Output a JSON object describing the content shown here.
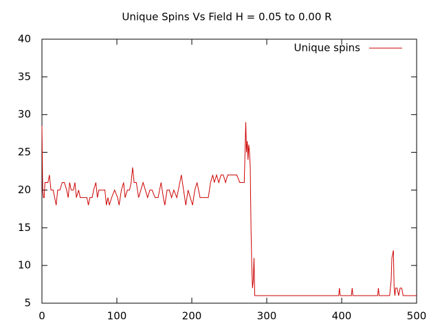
{
  "chart_data": {
    "type": "line",
    "title": "Unique Spins Vs Field H = 0.05 to 0.00 R",
    "x": [
      0,
      1,
      2,
      3,
      4,
      8,
      10,
      12,
      15,
      17,
      19,
      21,
      24,
      27,
      30,
      33,
      35,
      37,
      39,
      42,
      44,
      46,
      49,
      51,
      56,
      60,
      62,
      64,
      67,
      69,
      72,
      74,
      76,
      80,
      84,
      86,
      88,
      90,
      93,
      97,
      101,
      103,
      106,
      109,
      111,
      114,
      117,
      119,
      121,
      123,
      126,
      129,
      132,
      135,
      138,
      141,
      144,
      147,
      151,
      155,
      159,
      162,
      164,
      167,
      170,
      173,
      176,
      180,
      184,
      186,
      189,
      192,
      195,
      198,
      201,
      204,
      207,
      211,
      214,
      217,
      222,
      225,
      228,
      230,
      233,
      236,
      239,
      242,
      245,
      248,
      252,
      256,
      260,
      264,
      268,
      270,
      272,
      273,
      274,
      275,
      276,
      277,
      278,
      279,
      280,
      281,
      282,
      283,
      284,
      286,
      300,
      396,
      397,
      398,
      413,
      414,
      415,
      448,
      449,
      450,
      464,
      466,
      467,
      468,
      469,
      470,
      471,
      472,
      474,
      476,
      478,
      480,
      482,
      500
    ],
    "series": [
      {
        "name": "Unique spins",
        "color": "#cc0000",
        "values": [
          28.5,
          20,
          19,
          19,
          21,
          21,
          22,
          20,
          20,
          19,
          18,
          20,
          20,
          21,
          21,
          20,
          19,
          21,
          20,
          20,
          21,
          19,
          20,
          19,
          19,
          19,
          18,
          19,
          19,
          20,
          21,
          19,
          20,
          20,
          20,
          18,
          19,
          18,
          19,
          20,
          19,
          18,
          20,
          21,
          19,
          20,
          20,
          21,
          23,
          21,
          21,
          19,
          20,
          21,
          20,
          19,
          20,
          20,
          19,
          19,
          21,
          19,
          18,
          20,
          20,
          19,
          20,
          19,
          21,
          22,
          20,
          18,
          20,
          19,
          18,
          20,
          21,
          19,
          19,
          19,
          19,
          21,
          22,
          21,
          22,
          21,
          22,
          22,
          21,
          22,
          22,
          22,
          22,
          21,
          21,
          21,
          29,
          25,
          26.5,
          24,
          26,
          25,
          23,
          15,
          10,
          7,
          8,
          11,
          6,
          6,
          6,
          6,
          7,
          6,
          6,
          7,
          6,
          6,
          7,
          6,
          6,
          8,
          11,
          11.5,
          12,
          7,
          6,
          7,
          7,
          6,
          7,
          7,
          6,
          6
        ]
      }
    ],
    "xlim": [
      0,
      500
    ],
    "xticks": [
      0,
      100,
      200,
      300,
      400,
      500
    ],
    "ylim": [
      5,
      40
    ],
    "yticks": [
      5,
      10,
      15,
      20,
      25,
      30,
      35,
      40
    ],
    "grid": false,
    "legend": "top-right"
  }
}
